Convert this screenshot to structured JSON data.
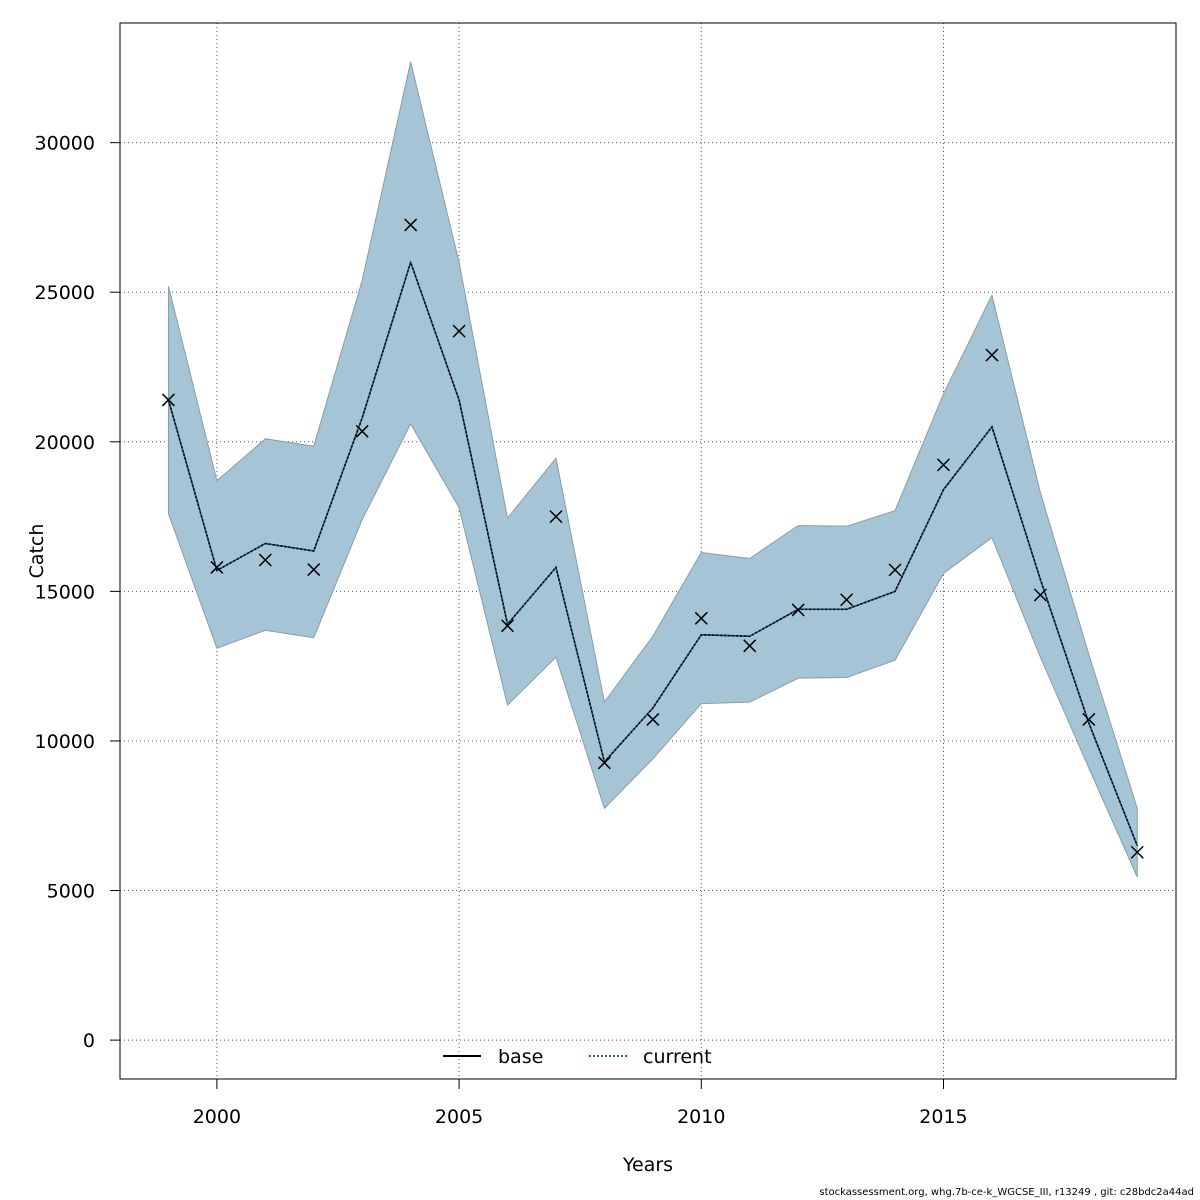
{
  "chart_data": {
    "type": "line",
    "title": "",
    "xlabel": "Years",
    "ylabel": "Catch",
    "xlim": [
      1998,
      2019.8
    ],
    "ylim": [
      -1300,
      34000
    ],
    "x_ticks": [
      2000,
      2005,
      2010,
      2015
    ],
    "y_ticks": [
      0,
      5000,
      10000,
      15000,
      20000,
      25000,
      30000
    ],
    "grid": true,
    "legend_position": "bottom",
    "x": [
      1999,
      2000,
      2001,
      2002,
      2003,
      2004,
      2005,
      2006,
      2007,
      2008,
      2009,
      2010,
      2011,
      2012,
      2013,
      2014,
      2015,
      2016,
      2017,
      2018,
      2019
    ],
    "series": [
      {
        "name": "base",
        "style": "solid",
        "color": "#000000",
        "values": [
          21400,
          15700,
          16600,
          16350,
          20800,
          26000,
          21400,
          13900,
          15800,
          9300,
          11100,
          13550,
          13500,
          14400,
          14400,
          15000,
          18400,
          20500,
          15400,
          10600,
          6500
        ]
      },
      {
        "name": "current",
        "style": "dotted",
        "color": "#1f5f9f",
        "values": [
          21400,
          15700,
          16600,
          16350,
          20800,
          26000,
          21400,
          13900,
          15800,
          9300,
          11100,
          13550,
          13500,
          14400,
          14400,
          15000,
          18400,
          20500,
          15400,
          10600,
          6500
        ]
      }
    ],
    "interval": {
      "upper": [
        25200,
        18700,
        20100,
        19850,
        25400,
        32700,
        26000,
        17450,
        19450,
        11300,
        13500,
        16300,
        16100,
        17200,
        17180,
        17700,
        21600,
        24900,
        18300,
        12900,
        7750
      ],
      "lower": [
        17600,
        13100,
        13700,
        13450,
        17400,
        20600,
        17800,
        11200,
        12800,
        7750,
        9400,
        11250,
        11300,
        12100,
        12120,
        12700,
        15600,
        16800,
        12800,
        9100,
        5450
      ],
      "fill": "#a5c5d6",
      "stroke": "#8a9ba6"
    },
    "observations": {
      "marker": "x",
      "values": [
        21400,
        15800,
        16050,
        15730,
        20350,
        27250,
        23700,
        13850,
        17500,
        9270,
        10720,
        14100,
        13180,
        14380,
        14720,
        15720,
        19230,
        22900,
        14880,
        10720,
        6280
      ]
    }
  },
  "footer": "stockassessment.org, whg.7b-ce-k_WGCSE_III, r13249 , git: c28bdc2a44ad"
}
